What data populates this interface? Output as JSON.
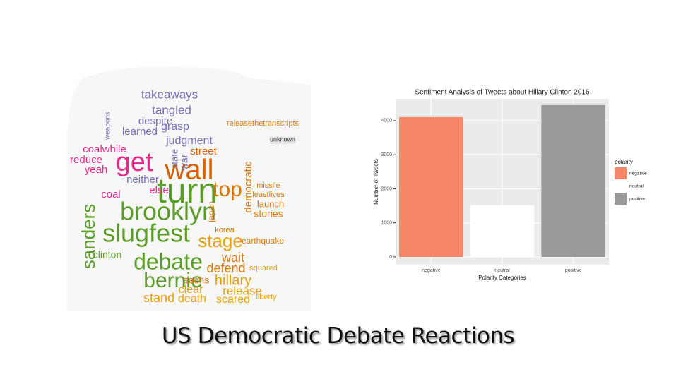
{
  "title": "US Democratic Debate Reactions",
  "word_cloud": {
    "words": [
      {
        "text": "turn",
        "color": "#5a9e28"
      },
      {
        "text": "brooklyn",
        "color": "#5a9e28"
      },
      {
        "text": "slugfest",
        "color": "#5a9e28"
      },
      {
        "text": "wall",
        "color": "#d95f02"
      },
      {
        "text": "get",
        "color": "#e7298a"
      },
      {
        "text": "debate",
        "color": "#5a9e28"
      },
      {
        "text": "bernie",
        "color": "#5a9e28"
      },
      {
        "text": "top",
        "color": "#d9780a"
      },
      {
        "text": "stage",
        "color": "#e6a010"
      },
      {
        "text": "sanders",
        "color": "#5a9e28"
      },
      {
        "text": "hillary",
        "color": "#e6a010"
      },
      {
        "text": "takeaways",
        "color": "#7570b3"
      },
      {
        "text": "tangled",
        "color": "#7570b3"
      },
      {
        "text": "grasp",
        "color": "#7570b3"
      },
      {
        "text": "judgment",
        "color": "#7570b3"
      },
      {
        "text": "despite",
        "color": "#7570b3"
      },
      {
        "text": "learned",
        "color": "#7570b3"
      },
      {
        "text": "coalwhile",
        "color": "#e7298a"
      },
      {
        "text": "reduce",
        "color": "#e7298a"
      },
      {
        "text": "yeah",
        "color": "#e7298a"
      },
      {
        "text": "neither",
        "color": "#7570b3"
      },
      {
        "text": "else",
        "color": "#e7298a"
      },
      {
        "text": "coal",
        "color": "#e7298a"
      },
      {
        "text": "street",
        "color": "#d95f02"
      },
      {
        "text": "stories",
        "color": "#d9780a"
      },
      {
        "text": "launch",
        "color": "#d9780a"
      },
      {
        "text": "leastlives",
        "color": "#d9780a"
      },
      {
        "text": "missile",
        "color": "#d9780a"
      },
      {
        "text": "wait",
        "color": "#d9780a"
      },
      {
        "text": "defend",
        "color": "#d9780a"
      },
      {
        "text": "release",
        "color": "#e6a010"
      },
      {
        "text": "scared",
        "color": "#e6a010"
      },
      {
        "text": "stand",
        "color": "#e6a010"
      },
      {
        "text": "death",
        "color": "#e6a010"
      },
      {
        "text": "clear",
        "color": "#e6a010"
      },
      {
        "text": "sachs",
        "color": "#d9780a"
      },
      {
        "text": "earthquake",
        "color": "#d9780a"
      },
      {
        "text": "democratic",
        "color": "#d9780a"
      },
      {
        "text": "clinton",
        "color": "#5a9e28"
      },
      {
        "text": "releasethetranscripts",
        "color": "#d9780a"
      },
      {
        "text": "korea",
        "color": "#d9780a"
      },
      {
        "text": "japan",
        "color": "#d9780a"
      },
      {
        "text": "liberty",
        "color": "#e6a010"
      },
      {
        "text": "squared",
        "color": "#e6a010"
      },
      {
        "text": "unknown",
        "color": "#333333"
      },
      {
        "text": "weapons",
        "color": "#7570b3"
      },
      {
        "text": "state",
        "color": "#7570b3"
      },
      {
        "text": "war",
        "color": "#7570b3"
      }
    ]
  },
  "chart_data": {
    "type": "bar",
    "title": "Sentiment Analysis of Tweets about Hillary Clinton 2016",
    "x_label": "Polarity Categories",
    "y_label": "Number of Tweets",
    "categories": [
      "negative",
      "neutral",
      "positive"
    ],
    "values": [
      4104,
      1513,
      4456
    ],
    "colors": [
      "#f8866a",
      "#ffffff",
      "#999999"
    ],
    "ylim": [
      -228,
      4640
    ],
    "yticks": [
      0,
      1000,
      2000,
      3000,
      4000
    ],
    "grid": true,
    "legend_title": "polarity",
    "legend_position": "right"
  }
}
